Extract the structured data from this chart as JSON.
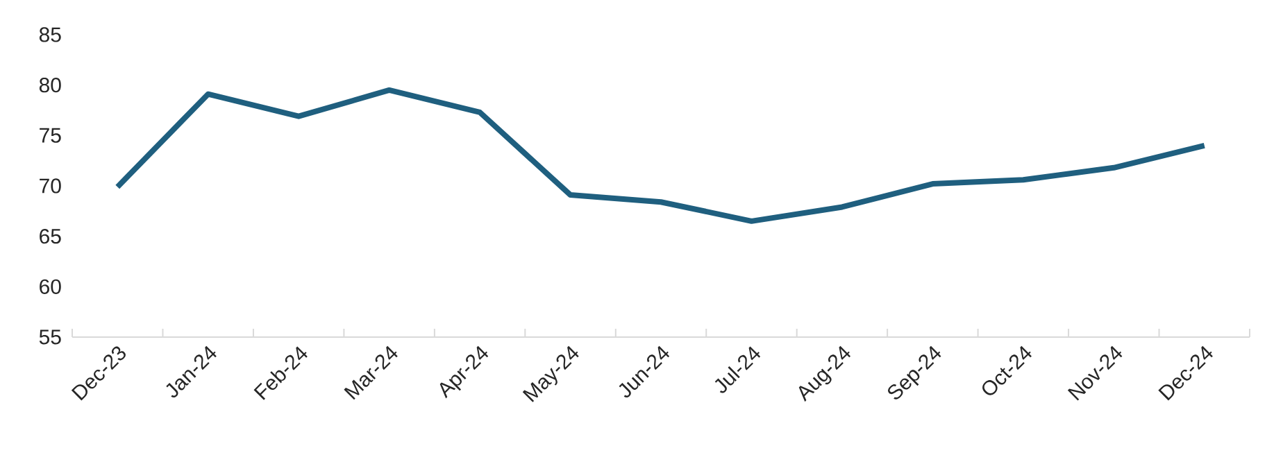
{
  "chart_data": {
    "type": "line",
    "categories": [
      "Dec-23",
      "Jan-24",
      "Feb-24",
      "Mar-24",
      "Apr-24",
      "May-24",
      "Jun-24",
      "Jul-24",
      "Aug-24",
      "Sep-24",
      "Oct-24",
      "Nov-24",
      "Dec-24"
    ],
    "series": [
      {
        "color": "#1f5f7f",
        "values": [
          69.9,
          79.1,
          76.9,
          79.5,
          77.3,
          69.1,
          68.4,
          66.5,
          67.9,
          70.2,
          70.6,
          71.8,
          74.0
        ]
      }
    ],
    "ylim": [
      55,
      85
    ],
    "yticks": [
      55,
      60,
      65,
      70,
      75,
      80,
      85
    ],
    "grid": false,
    "marker": "none",
    "line_style": "solid"
  }
}
